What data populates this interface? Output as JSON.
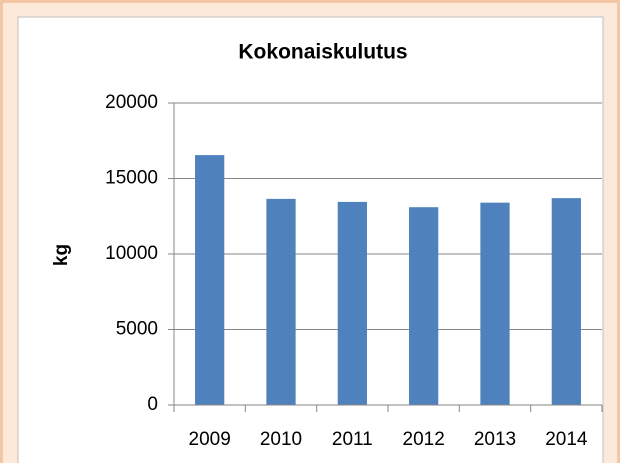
{
  "chart_data": {
    "type": "bar",
    "title": "Kokonaiskulutus",
    "y_label": "kg",
    "categories": [
      "2009",
      "2010",
      "2011",
      "2012",
      "2013",
      "2014"
    ],
    "values": [
      16550,
      13650,
      13450,
      13100,
      13400,
      13700
    ],
    "color": "#4f81bd",
    "ylim": [
      0,
      20000
    ],
    "yticks": [
      0,
      5000,
      10000,
      15000,
      20000
    ],
    "grid": true
  }
}
